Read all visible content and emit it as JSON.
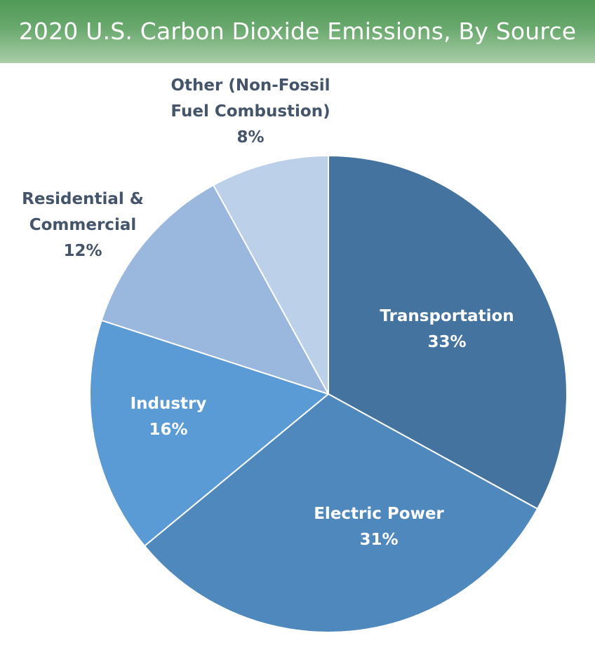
{
  "title": "2020 U.S. Carbon Dioxide Emissions, By Source",
  "colors": {
    "title_banner": "#5a9e5f",
    "outside_label": "#44546a",
    "inside_label": "#ffffff",
    "slice_border": "#ffffff"
  },
  "chart_data": {
    "type": "pie",
    "start_angle_deg": 0,
    "direction": "clockwise",
    "slices": [
      {
        "label_lines": [
          "Transportation"
        ],
        "value": 33,
        "value_text": "33%",
        "color": "#44739f",
        "label_position": "inside"
      },
      {
        "label_lines": [
          "Electric Power"
        ],
        "value": 31,
        "value_text": "31%",
        "color": "#4f88bd",
        "label_position": "inside"
      },
      {
        "label_lines": [
          "Industry"
        ],
        "value": 16,
        "value_text": "16%",
        "color": "#5b9bd5",
        "label_position": "inside"
      },
      {
        "label_lines": [
          "Residential &",
          "Commercial"
        ],
        "value": 12,
        "value_text": "12%",
        "color": "#9ab8de",
        "label_position": "outside"
      },
      {
        "label_lines": [
          "Other (Non-Fossil",
          "Fuel Combustion)"
        ],
        "value": 8,
        "value_text": "8%",
        "color": "#bdd0ea",
        "label_position": "outside"
      }
    ]
  }
}
